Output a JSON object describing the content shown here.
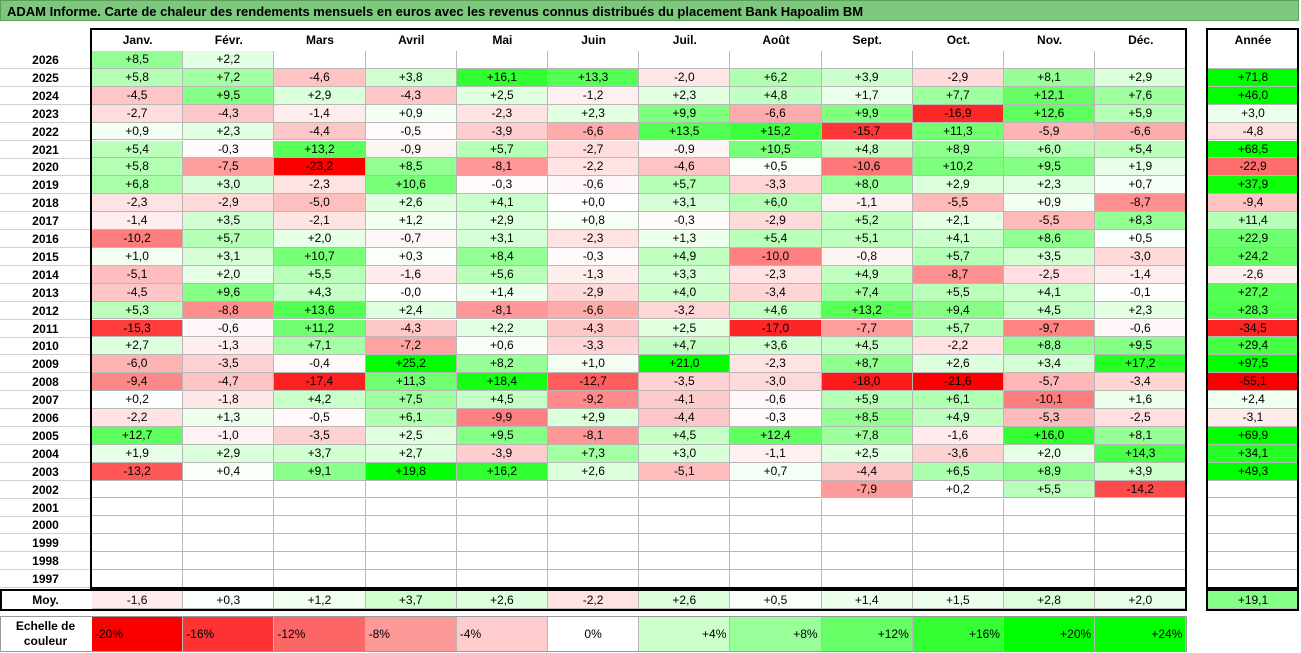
{
  "title": "ADAM Informe. Carte de chaleur des rendements mensuels en euros avec les revenus connus distribués du placement Bank Hapoalim BM",
  "chart_data": {
    "type": "heatmap",
    "months": [
      "Janv.",
      "Févr.",
      "Mars",
      "Avril",
      "Mai",
      "Juin",
      "Juil.",
      "Août",
      "Sept.",
      "Oct.",
      "Nov.",
      "Déc."
    ],
    "year_header": "Année",
    "rows": [
      {
        "year": "2026",
        "values": [
          "+8,5",
          "+2,2",
          "",
          "",
          "",
          "",
          "",
          "",
          "",
          "",
          "",
          ""
        ],
        "annual": ""
      },
      {
        "year": "2025",
        "values": [
          "+5,8",
          "+7,2",
          "-4,6",
          "+3,8",
          "+16,1",
          "+13,3",
          "-2,0",
          "+6,2",
          "+3,9",
          "-2,9",
          "+8,1",
          "+2,9"
        ],
        "annual": "+71,8"
      },
      {
        "year": "2024",
        "values": [
          "-4,5",
          "+9,5",
          "+2,9",
          "-4,3",
          "+2,5",
          "-1,2",
          "+2,3",
          "+4,8",
          "+1,7",
          "+7,7",
          "+12,1",
          "+7,6"
        ],
        "annual": "+46,0"
      },
      {
        "year": "2023",
        "values": [
          "-2,7",
          "-4,3",
          "-1,4",
          "+0,9",
          "-2,3",
          "+2,3",
          "+9,9",
          "-6,6",
          "+9,9",
          "-16,9",
          "+12,6",
          "+5,9"
        ],
        "annual": "+3,0"
      },
      {
        "year": "2022",
        "values": [
          "+0,9",
          "+2,3",
          "-4,4",
          "-0,5",
          "-3,9",
          "-6,6",
          "+13,5",
          "+15,2",
          "-15,7",
          "+11,3",
          "-5,9",
          "-6,6"
        ],
        "annual": "-4,8"
      },
      {
        "year": "2021",
        "values": [
          "+5,4",
          "-0,3",
          "+13,2",
          "-0,9",
          "+5,7",
          "-2,7",
          "-0,9",
          "+10,5",
          "+4,8",
          "+8,9",
          "+6,0",
          "+5,4"
        ],
        "annual": "+68,5"
      },
      {
        "year": "2020",
        "values": [
          "+5,8",
          "-7,5",
          "-23,2",
          "+8,5",
          "-8,1",
          "-2,2",
          "-4,6",
          "+0,5",
          "-10,6",
          "+10,2",
          "+9,5",
          "+1,9"
        ],
        "annual": "-22,9"
      },
      {
        "year": "2019",
        "values": [
          "+6,8",
          "+3,0",
          "-2,3",
          "+10,6",
          "-0,3",
          "-0,6",
          "+5,7",
          "-3,3",
          "+8,0",
          "+2,9",
          "+2,3",
          "+0,7"
        ],
        "annual": "+37,9"
      },
      {
        "year": "2018",
        "values": [
          "-2,3",
          "-2,9",
          "-5,0",
          "+2,6",
          "+4,1",
          "+0,0",
          "+3,1",
          "+6,0",
          "-1,1",
          "-5,5",
          "+0,9",
          "-8,7"
        ],
        "annual": "-9,4"
      },
      {
        "year": "2017",
        "values": [
          "-1,4",
          "+3,5",
          "-2,1",
          "+1,2",
          "+2,9",
          "+0,8",
          "-0,3",
          "-2,9",
          "+5,2",
          "+2,1",
          "-5,5",
          "+8,3"
        ],
        "annual": "+11,4"
      },
      {
        "year": "2016",
        "values": [
          "-10,2",
          "+5,7",
          "+2,0",
          "-0,7",
          "+3,1",
          "-2,3",
          "+1,3",
          "+5,4",
          "+5,1",
          "+4,1",
          "+8,6",
          "+0,5"
        ],
        "annual": "+22,9"
      },
      {
        "year": "2015",
        "values": [
          "+1,0",
          "+3,1",
          "+10,7",
          "+0,3",
          "+8,4",
          "-0,3",
          "+4,9",
          "-10,0",
          "-0,8",
          "+5,7",
          "+3,5",
          "-3,0"
        ],
        "annual": "+24,2"
      },
      {
        "year": "2014",
        "values": [
          "-5,1",
          "+2,0",
          "+5,5",
          "-1,6",
          "+5,6",
          "-1,3",
          "+3,3",
          "-2,3",
          "+4,9",
          "-8,7",
          "-2,5",
          "-1,4"
        ],
        "annual": "-2,6"
      },
      {
        "year": "2013",
        "values": [
          "-4,5",
          "+9,6",
          "+4,3",
          "-0,0",
          "+1,4",
          "-2,9",
          "+4,0",
          "-3,4",
          "+7,4",
          "+5,5",
          "+4,1",
          "-0,1"
        ],
        "annual": "+27,2"
      },
      {
        "year": "2012",
        "values": [
          "+5,3",
          "-8,8",
          "+13,6",
          "+2,4",
          "-8,1",
          "-6,6",
          "-3,2",
          "+4,6",
          "+13,2",
          "+9,4",
          "+4,5",
          "+2,3"
        ],
        "annual": "+28,3"
      },
      {
        "year": "2011",
        "values": [
          "-15,3",
          "-0,6",
          "+11,2",
          "-4,3",
          "+2,2",
          "-4,3",
          "+2,5",
          "-17,0",
          "-7,7",
          "+5,7",
          "-9,7",
          "-0,6"
        ],
        "annual": "-34,5"
      },
      {
        "year": "2010",
        "values": [
          "+2,7",
          "-1,3",
          "+7,1",
          "-7,2",
          "+0,6",
          "-3,3",
          "+4,7",
          "+3,6",
          "+4,5",
          "-2,2",
          "+8,8",
          "+9,5"
        ],
        "annual": "+29,4"
      },
      {
        "year": "2009",
        "values": [
          "-6,0",
          "-3,5",
          "-0,4",
          "+25,2",
          "+8,2",
          "+1,0",
          "+21,0",
          "-2,3",
          "+8,7",
          "+2,6",
          "+3,4",
          "+17,2"
        ],
        "annual": "+97,5"
      },
      {
        "year": "2008",
        "values": [
          "-9,4",
          "-4,7",
          "-17,4",
          "+11,3",
          "+18,4",
          "-12,7",
          "-3,5",
          "-3,0",
          "-18,0",
          "-21,6",
          "-5,7",
          "-3,4"
        ],
        "annual": "-55,1"
      },
      {
        "year": "2007",
        "values": [
          "+0,2",
          "-1,8",
          "+4,2",
          "+7,5",
          "+4,5",
          "-9,2",
          "-4,1",
          "-0,6",
          "+5,9",
          "+6,1",
          "-10,1",
          "+1,6"
        ],
        "annual": "+2,4"
      },
      {
        "year": "2006",
        "values": [
          "-2,2",
          "+1,3",
          "-0,5",
          "+6,1",
          "-9,9",
          "+2,9",
          "-4,4",
          "-0,3",
          "+8,5",
          "+4,9",
          "-5,3",
          "-2,5"
        ],
        "annual": "-3,1"
      },
      {
        "year": "2005",
        "values": [
          "+12,7",
          "-1,0",
          "-3,5",
          "+2,5",
          "+9,5",
          "-8,1",
          "+4,5",
          "+12,4",
          "+7,8",
          "-1,6",
          "+16,0",
          "+8,1"
        ],
        "annual": "+69,9"
      },
      {
        "year": "2004",
        "values": [
          "+1,9",
          "+2,9",
          "+3,7",
          "+2,7",
          "-3,9",
          "+7,3",
          "+3,0",
          "-1,1",
          "+2,5",
          "-3,6",
          "+2,0",
          "+14,3"
        ],
        "annual": "+34,1"
      },
      {
        "year": "2003",
        "values": [
          "-13,2",
          "+0,4",
          "+9,1",
          "+19,8",
          "+16,2",
          "+2,6",
          "-5,1",
          "+0,7",
          "-4,4",
          "+6,5",
          "+8,9",
          "+3,9"
        ],
        "annual": "+49,3"
      },
      {
        "year": "2002",
        "values": [
          "",
          "",
          "",
          "",
          "",
          "",
          "",
          "",
          "-7,9",
          "+0,2",
          "+5,5",
          "-14,2"
        ],
        "annual": ""
      },
      {
        "year": "2001",
        "values": [
          "",
          "",
          "",
          "",
          "",
          "",
          "",
          "",
          "",
          "",
          "",
          ""
        ],
        "annual": ""
      },
      {
        "year": "2000",
        "values": [
          "",
          "",
          "",
          "",
          "",
          "",
          "",
          "",
          "",
          "",
          "",
          ""
        ],
        "annual": ""
      },
      {
        "year": "1999",
        "values": [
          "",
          "",
          "",
          "",
          "",
          "",
          "",
          "",
          "",
          "",
          "",
          ""
        ],
        "annual": ""
      },
      {
        "year": "1998",
        "values": [
          "",
          "",
          "",
          "",
          "",
          "",
          "",
          "",
          "",
          "",
          "",
          ""
        ],
        "annual": ""
      },
      {
        "year": "1997",
        "values": [
          "",
          "",
          "",
          "",
          "",
          "",
          "",
          "",
          "",
          "",
          "",
          ""
        ],
        "annual": ""
      }
    ],
    "average": {
      "label": "Moy.",
      "values": [
        "-1,6",
        "+0,3",
        "+1,2",
        "+3,7",
        "+2,6",
        "-2,2",
        "+2,6",
        "+0,5",
        "+1,4",
        "+1,5",
        "+2,8",
        "+2,0"
      ],
      "annual": "+19,1"
    },
    "scale": {
      "label": "Echelle de couleur",
      "stops": [
        "-20%",
        "-16%",
        "-12%",
        "-8%",
        "-4%",
        "0%",
        "+4%",
        "+8%",
        "+12%",
        "+16%",
        "+20%",
        "+24%"
      ]
    }
  }
}
